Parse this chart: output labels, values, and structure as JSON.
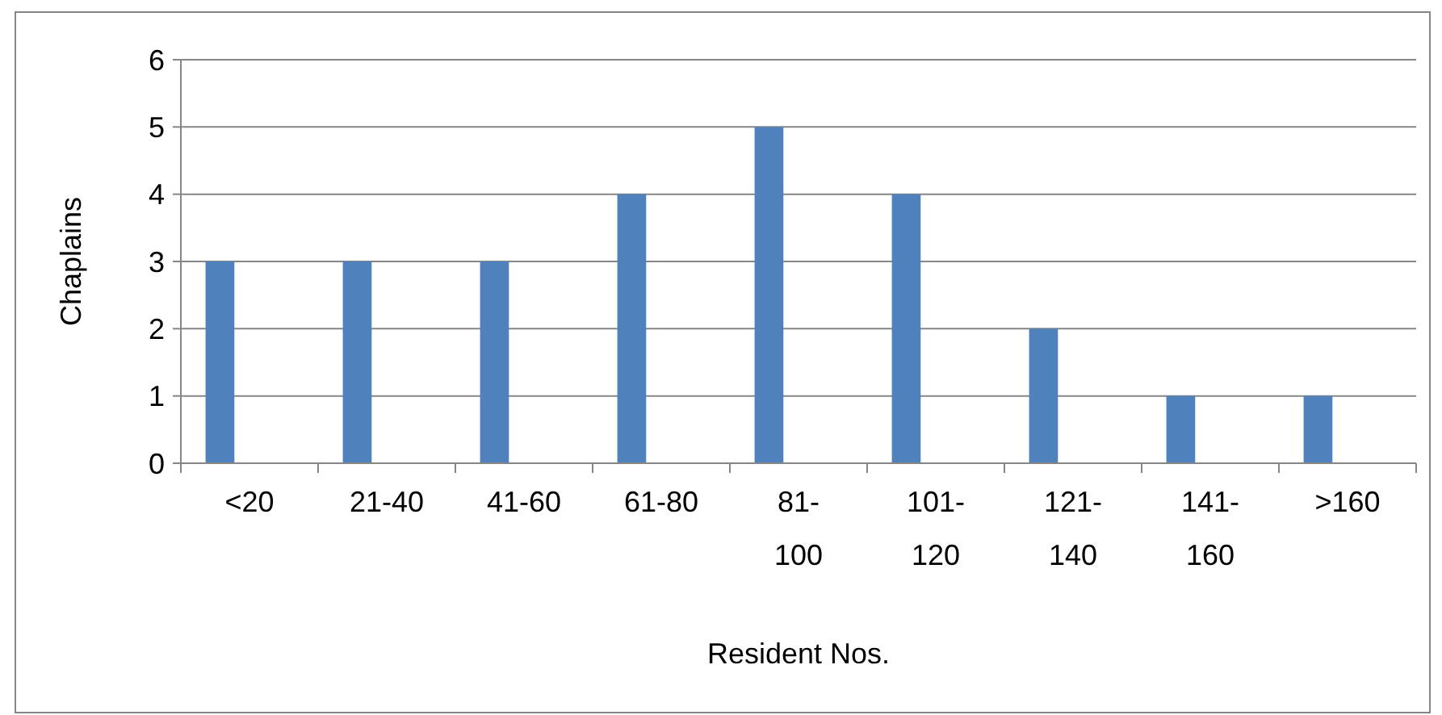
{
  "chart_data": {
    "type": "bar",
    "xlabel": "Resident Nos.",
    "ylabel": "Chaplains",
    "categories": [
      "<20",
      "21-40",
      "41-60",
      "61-80",
      "81-100",
      "101-120",
      "121-140",
      "141-160",
      ">160"
    ],
    "values": [
      3,
      3,
      3,
      4,
      5,
      4,
      2,
      1,
      1
    ],
    "color": "#4f81bd",
    "ylim": [
      0,
      6
    ],
    "yticks": [
      0,
      1,
      2,
      3,
      4,
      5,
      6
    ],
    "grid": "y"
  }
}
